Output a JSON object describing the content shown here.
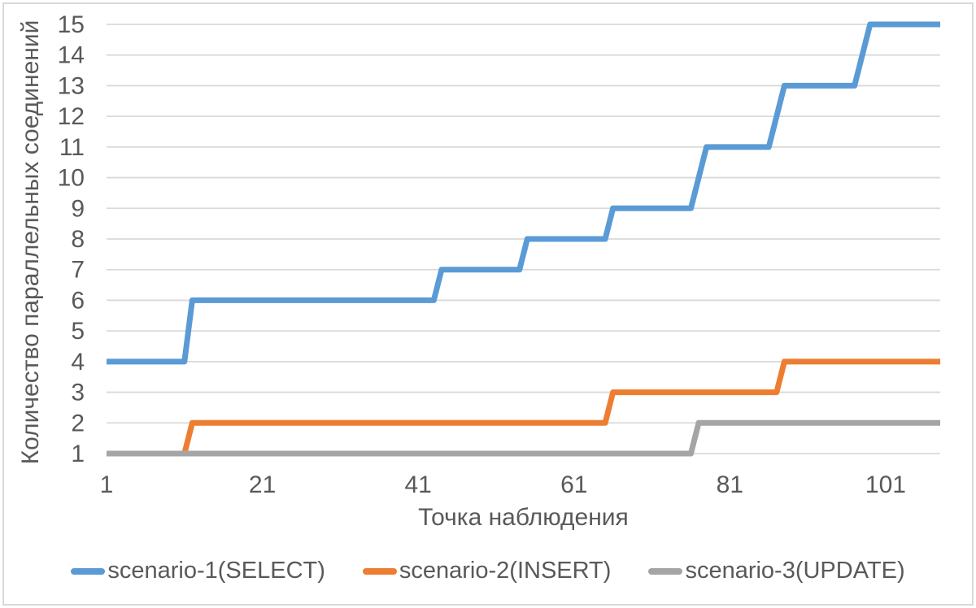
{
  "chart_data": {
    "type": "line",
    "subtype": "step",
    "title": "",
    "xlabel": "Точка наблюдения",
    "ylabel": "Количество параллельных соединений",
    "xlim": [
      1,
      108
    ],
    "ylim": [
      1,
      15
    ],
    "x_ticks": [
      1,
      21,
      41,
      61,
      81,
      101
    ],
    "y_ticks": [
      1,
      2,
      3,
      4,
      5,
      6,
      7,
      8,
      9,
      10,
      11,
      12,
      13,
      14,
      15
    ],
    "grid": "horizontal-only",
    "legend_position": "bottom",
    "series": [
      {
        "name": "scenario-1(SELECT)",
        "color": "#5b9bd5",
        "points": [
          [
            1,
            4
          ],
          [
            11,
            4
          ],
          [
            12,
            6
          ],
          [
            43,
            6
          ],
          [
            44,
            7
          ],
          [
            54,
            7
          ],
          [
            55,
            8
          ],
          [
            65,
            8
          ],
          [
            66,
            9
          ],
          [
            76,
            9
          ],
          [
            78,
            11
          ],
          [
            86,
            11
          ],
          [
            88,
            13
          ],
          [
            97,
            13
          ],
          [
            99,
            15
          ],
          [
            108,
            15
          ]
        ]
      },
      {
        "name": "scenario-2(INSERT)",
        "color": "#ed7d31",
        "points": [
          [
            1,
            1
          ],
          [
            11,
            1
          ],
          [
            12,
            2
          ],
          [
            65,
            2
          ],
          [
            66,
            3
          ],
          [
            87,
            3
          ],
          [
            88,
            4
          ],
          [
            108,
            4
          ]
        ]
      },
      {
        "name": "scenario-3(UPDATE)",
        "color": "#a5a5a5",
        "points": [
          [
            1,
            1
          ],
          [
            76,
            1
          ],
          [
            77,
            2
          ],
          [
            108,
            2
          ]
        ]
      }
    ]
  },
  "colors": {
    "text": "#595959",
    "gridline": "#d9d9d9",
    "frame_border": "#d9d9d9",
    "background": "#ffffff"
  }
}
